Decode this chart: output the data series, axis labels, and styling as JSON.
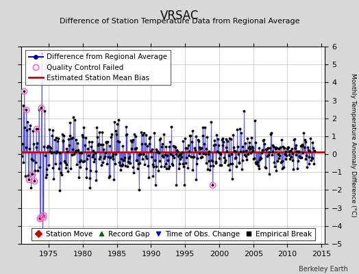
{
  "title": "VRSAC",
  "subtitle": "Difference of Station Temperature Data from Regional Average",
  "ylabel_right": "Monthly Temperature Anomaly Difference (°C)",
  "xlim": [
    1971.0,
    2015.5
  ],
  "ylim": [
    -5,
    6
  ],
  "yticks": [
    -5,
    -4,
    -3,
    -2,
    -1,
    0,
    1,
    2,
    3,
    4,
    5,
    6
  ],
  "xticks": [
    1975,
    1980,
    1985,
    1990,
    1995,
    2000,
    2005,
    2010,
    2015
  ],
  "mean_bias": 0.1,
  "bias_color": "#cc0000",
  "line_color": "#0000cc",
  "fill_color": "#9999ee",
  "dot_color": "#000000",
  "qc_color": "#ff66cc",
  "background_color": "#d8d8d8",
  "plot_bg_color": "#ffffff",
  "station_move_color": "#cc0000",
  "record_gap_color": "#006600",
  "obs_change_color": "#0000cc",
  "empirical_color": "#000000",
  "watermark": "Berkeley Earth",
  "title_fontsize": 12,
  "subtitle_fontsize": 8,
  "legend_fontsize": 7.5,
  "tick_fontsize": 8
}
